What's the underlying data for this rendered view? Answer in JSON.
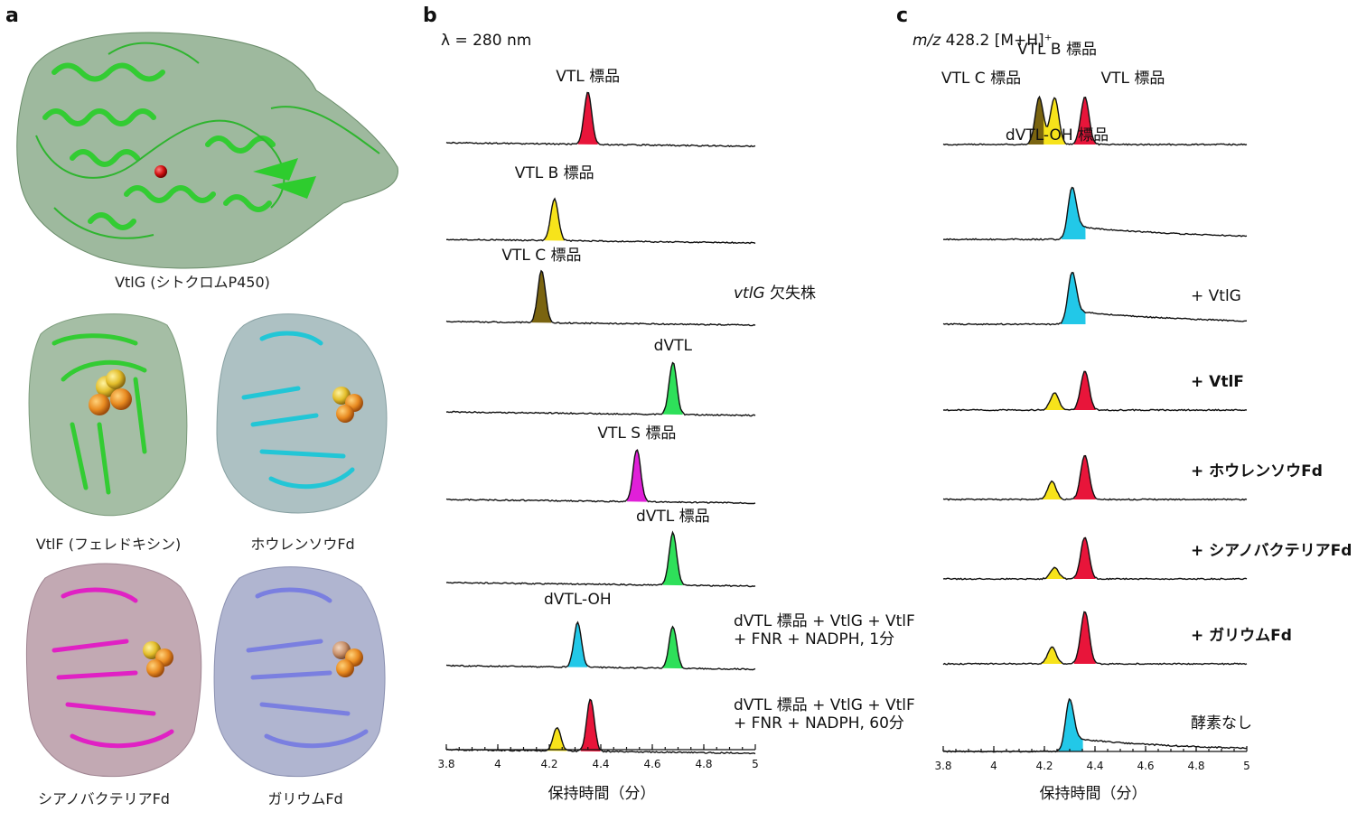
{
  "panels": {
    "a": {
      "letter": "a",
      "structures": [
        {
          "id": "vtlg",
          "label": "VtlG (シトクロムP450)",
          "color": "#3dd13d",
          "surface": "#7ea27e"
        },
        {
          "id": "vtlf",
          "label": "VtlF (フェレドキシン)",
          "color": "#3dd13d",
          "surface": "#8fae8f"
        },
        {
          "id": "spinach",
          "label": "ホウレンソウFd",
          "color": "#22c6d6",
          "surface": "#9fb6b8"
        },
        {
          "id": "cyano",
          "label": "シアノバクテリアFd",
          "color": "#e021c4",
          "surface": "#b79aa6"
        },
        {
          "id": "gallium",
          "label": "ガリウムFd",
          "color": "#7a7fe0",
          "surface": "#a2a8c8"
        }
      ]
    },
    "b": {
      "letter": "b",
      "detection": "λ = 280 nm",
      "xlabel": "保持時間（分）",
      "xlim": [
        3.8,
        5
      ],
      "xticks": [
        "3.8",
        "4",
        "4.2",
        "4.4",
        "4.6",
        "4.8",
        "5"
      ],
      "traces": [
        {
          "peak_labels": [
            {
              "text": "VTL 標品",
              "x": 4.35
            }
          ],
          "peaks": [
            {
              "x": 4.35,
              "color": "#e8153a",
              "h": 1.0
            }
          ],
          "side_label": ""
        },
        {
          "peak_labels": [
            {
              "text": "VTL B 標品",
              "x": 4.22
            }
          ],
          "peaks": [
            {
              "x": 4.22,
              "color": "#f7e31b",
              "h": 0.8
            }
          ],
          "side_label": ""
        },
        {
          "peak_labels": [
            {
              "text": "VTL C 標品",
              "x": 4.17
            }
          ],
          "peaks": [
            {
              "x": 4.17,
              "color": "#7a6410",
              "h": 1.0
            }
          ],
          "side_label": "vtlG 欠失株",
          "side_italic_prefix": "vtlG"
        },
        {
          "peak_labels": [
            {
              "text": "dVTL",
              "x": 4.68
            }
          ],
          "peaks": [
            {
              "x": 4.68,
              "color": "#2ee05a",
              "h": 1.0
            }
          ],
          "side_label": ""
        },
        {
          "peak_labels": [
            {
              "text": "VTL S 標品",
              "x": 4.54
            }
          ],
          "peaks": [
            {
              "x": 4.54,
              "color": "#e020d8",
              "h": 1.0
            }
          ],
          "side_label": ""
        },
        {
          "peak_labels": [
            {
              "text": "dVTL 標品",
              "x": 4.68
            }
          ],
          "peaks": [
            {
              "x": 4.68,
              "color": "#2ee05a",
              "h": 1.0
            }
          ],
          "side_label": ""
        },
        {
          "peak_labels": [
            {
              "text": "dVTL-OH",
              "x": 4.31
            }
          ],
          "peaks": [
            {
              "x": 4.31,
              "color": "#22c8e8",
              "h": 0.85
            },
            {
              "x": 4.68,
              "color": "#2ee05a",
              "h": 0.8
            }
          ],
          "side_label": "dVTL 標品 + VtlG + VtlF|+ FNR + NADPH, 1分"
        },
        {
          "peak_labels": [],
          "peaks": [
            {
              "x": 4.23,
              "color": "#f7e31b",
              "h": 0.45
            },
            {
              "x": 4.36,
              "color": "#e8153a",
              "h": 1.0
            }
          ],
          "side_label": "dVTL 標品 + VtlG + VtlF|+ FNR + NADPH, 60分"
        }
      ]
    },
    "c": {
      "letter": "c",
      "detection_italic": "m/z",
      "detection": " 428.2 [M+H]⁺",
      "xlabel": "保持時間（分）",
      "xlim": [
        3.8,
        5
      ],
      "xticks": [
        "3.8",
        "4",
        "4.2",
        "4.4",
        "4.6",
        "4.8",
        "5"
      ],
      "traces": [
        {
          "peak_labels": [
            {
              "text": "VTL B 標品",
              "x": 4.25,
              "dy": -42
            },
            {
              "text": "VTL C 標品",
              "x": 3.95,
              "dy": -10
            },
            {
              "text": "VTL 標品",
              "x": 4.55,
              "dy": -10
            }
          ],
          "peaks": [
            {
              "x": 4.18,
              "color": "#7a6410",
              "h": 0.9
            },
            {
              "x": 4.24,
              "color": "#f7e31b",
              "h": 0.9
            },
            {
              "x": 4.36,
              "color": "#e8153a",
              "h": 0.9
            }
          ],
          "side_label": "",
          "bold": false
        },
        {
          "peak_labels": [
            {
              "text": "dVTL-OH 標品",
              "x": 4.25,
              "dy": -52
            }
          ],
          "peaks": [
            {
              "x": 4.31,
              "color": "#22c8e8",
              "h": 1.0,
              "tail": true
            }
          ],
          "side_label": "",
          "bold": false
        },
        {
          "peak_labels": [],
          "peaks": [
            {
              "x": 4.31,
              "color": "#22c8e8",
              "h": 1.0,
              "tail": true
            }
          ],
          "side_label": "+ VtlG",
          "bold": false
        },
        {
          "peak_labels": [],
          "peaks": [
            {
              "x": 4.24,
              "color": "#f7e31b",
              "h": 0.33
            },
            {
              "x": 4.36,
              "color": "#e8153a",
              "h": 0.75
            }
          ],
          "side_label": "+ VtlF",
          "bold": true
        },
        {
          "peak_labels": [],
          "peaks": [
            {
              "x": 4.23,
              "color": "#f7e31b",
              "h": 0.35
            },
            {
              "x": 4.36,
              "color": "#e8153a",
              "h": 0.85
            }
          ],
          "side_label": "+ ホウレンソウFd",
          "bold": true
        },
        {
          "peak_labels": [],
          "peaks": [
            {
              "x": 4.24,
              "color": "#f7e31b",
              "h": 0.22
            },
            {
              "x": 4.36,
              "color": "#e8153a",
              "h": 0.8
            }
          ],
          "side_label": "+ シアノバクテリアFd",
          "bold": true
        },
        {
          "peak_labels": [],
          "peaks": [
            {
              "x": 4.23,
              "color": "#f7e31b",
              "h": 0.32
            },
            {
              "x": 4.36,
              "color": "#e8153a",
              "h": 1.0
            }
          ],
          "side_label": "+ ガリウムFd",
          "bold": true
        },
        {
          "peak_labels": [],
          "peaks": [
            {
              "x": 4.3,
              "color": "#22c8e8",
              "h": 1.0,
              "tail": true
            }
          ],
          "side_label": "酵素なし",
          "bold": false
        }
      ]
    }
  }
}
